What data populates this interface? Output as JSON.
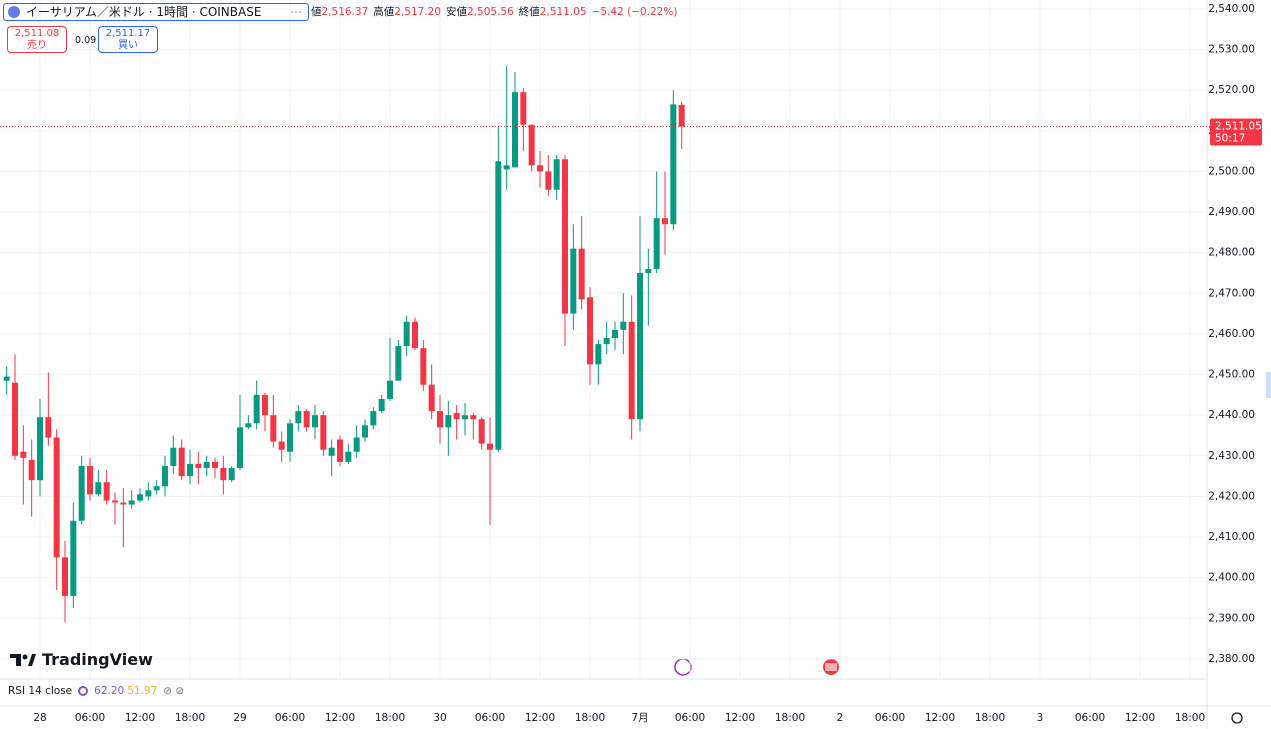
{
  "header": {
    "symbol": "イーサリアム／米ドル · 1時間 · COINBASE",
    "ohlc": [
      {
        "label": "値",
        "value": "2,516.37"
      },
      {
        "label": "高値",
        "value": "2,517.20"
      },
      {
        "label": "安値",
        "value": "2,505.56"
      },
      {
        "label": "終値",
        "value": "2,511.05"
      }
    ],
    "change": "−5.42 (−0.22%)"
  },
  "order": {
    "sell_price": "2,511.08",
    "sell": "売り",
    "spread": "0.09",
    "buy_price": "2,511.17",
    "buy": "買い"
  },
  "indicator": {
    "name": "RSI 14 close",
    "values": [
      "62.20",
      "51.97"
    ]
  },
  "brand": "TradingView",
  "chart_data": {
    "type": "candlestick",
    "up_color": "#089981",
    "down_color": "#f23645",
    "grid": true,
    "ylim": [
      2375.3,
      2542.2
    ],
    "yticks": [
      {
        "value": 2380,
        "label": "2,380.00"
      },
      {
        "value": 2390,
        "label": "2,390.00"
      },
      {
        "value": 2400,
        "label": "2,400.00"
      },
      {
        "value": 2410,
        "label": "2,410.00"
      },
      {
        "value": 2420,
        "label": "2,420.00"
      },
      {
        "value": 2430,
        "label": "2,430.00"
      },
      {
        "value": 2440,
        "label": "2,440.00"
      },
      {
        "value": 2450,
        "label": "2,450.00"
      },
      {
        "value": 2460,
        "label": "2,460.00"
      },
      {
        "value": 2470,
        "label": "2,470.00"
      },
      {
        "value": 2480,
        "label": "2,480.00"
      },
      {
        "value": 2490,
        "label": "2,490.00"
      },
      {
        "value": 2500,
        "label": "2,500.00"
      },
      {
        "value": 2510,
        "label": "2,510.00"
      },
      {
        "value": 2520,
        "label": "2,520.00"
      },
      {
        "value": 2530,
        "label": "2,530.00"
      },
      {
        "value": 2540,
        "label": "2,540.00"
      }
    ],
    "last_price": {
      "value": 2511.05,
      "label": "2,511.05"
    },
    "countdown": "50:17",
    "categories": [
      null,
      null,
      null,
      null,
      "28",
      null,
      null,
      null,
      null,
      null,
      "06:00",
      null,
      null,
      null,
      null,
      null,
      "12:00",
      null,
      null,
      null,
      null,
      null,
      "18:00",
      null,
      null,
      null,
      null,
      null,
      "29",
      null,
      null,
      null,
      null,
      null,
      "06:00",
      null,
      null,
      null,
      null,
      null,
      "12:00",
      null,
      null,
      null,
      null,
      null,
      "18:00",
      null,
      null,
      null,
      null,
      null,
      "30",
      null,
      null,
      null,
      null,
      null,
      "06:00",
      null,
      null,
      null,
      null,
      null,
      "12:00",
      null,
      null,
      null,
      null,
      null,
      "18:00",
      null,
      null,
      null,
      null,
      null,
      "7月",
      null,
      null,
      null,
      null,
      null,
      "06:00",
      null,
      null,
      null,
      null,
      null,
      "12:00",
      null,
      null,
      null,
      null,
      null,
      "18:00",
      null,
      null,
      null,
      null,
      null,
      "2",
      null,
      null,
      null,
      null,
      null,
      "06:00",
      null,
      null,
      null,
      null,
      null,
      "12:00",
      null,
      null,
      null,
      null,
      null,
      "18:00",
      null,
      null,
      null,
      null,
      null,
      "3",
      null,
      null,
      null,
      null,
      null,
      "06:00",
      null,
      null,
      null,
      null,
      null,
      "12:00",
      null,
      null,
      null,
      null,
      null,
      "18:00"
    ],
    "open": [
      2448.5,
      2448,
      2431,
      2429,
      2424,
      2439.5,
      2434.5,
      2405,
      2395.5,
      2414,
      2427.5,
      2420.5,
      2423.5,
      2419,
      2418.5,
      2418,
      2419,
      2420,
      2421.5,
      2422.5,
      2427.5,
      2432,
      2425,
      2428,
      2427,
      2428.5,
      2427,
      2424,
      2427,
      2437,
      2438,
      2445,
      2440,
      2433.5,
      2431,
      2438,
      2441,
      2437,
      2440,
      2430,
      2434,
      2428.5,
      2431,
      2434.5,
      2437.5,
      2441,
      2444,
      2448.5,
      2457,
      2463,
      2456.5,
      2447.5,
      2441,
      2437,
      2440.5,
      2439,
      2440,
      2439,
      2433,
      2431.5,
      2500.5,
      2501,
      2519.5,
      2511.5,
      2501.5,
      2500,
      2495.5,
      2503,
      2465,
      2481,
      2469,
      2452.5,
      2457.5,
      2459,
      2461,
      2463,
      2439,
      2475,
      2476,
      2488.5,
      2487,
      2516.37,
      null,
      null,
      null,
      null,
      null,
      null,
      null,
      null,
      null,
      null,
      null,
      null,
      null,
      null,
      null,
      null,
      null,
      null,
      null,
      null,
      null,
      null,
      null,
      null,
      null,
      null,
      null,
      null,
      null,
      null,
      null,
      null,
      null,
      null,
      null,
      null,
      null,
      null,
      null,
      null,
      null,
      null,
      null,
      null,
      null,
      null,
      null,
      null,
      null,
      null,
      null,
      null,
      null,
      null,
      null,
      null,
      null,
      null,
      null,
      null,
      null
    ],
    "high": [
      2452,
      2455,
      2437.5,
      2434,
      2444,
      2450.5,
      2436.5,
      2409,
      2418.5,
      2430,
      2429.5,
      2426.5,
      2426.5,
      2421,
      2422,
      2421.5,
      2422,
      2423.5,
      2424,
      2430,
      2435,
      2434,
      2431.5,
      2431,
      2430,
      2429.5,
      2430,
      2427.5,
      2445,
      2440,
      2448.5,
      2445.5,
      2445,
      2436,
      2439,
      2442.5,
      2441.5,
      2442.5,
      2441,
      2434,
      2435,
      2433,
      2437.5,
      2439,
      2442,
      2445,
      2459,
      2458.5,
      2464.5,
      2464,
      2458.5,
      2452.5,
      2445,
      2443.5,
      2442.5,
      2443,
      2440.5,
      2439.5,
      2439.5,
      2511,
      2526,
      2524.5,
      2520.5,
      2511.5,
      2505,
      2504,
      2504,
      2504,
      2487,
      2489,
      2471.5,
      2458.5,
      2463,
      2463,
      2470,
      2469.5,
      2489,
      2481,
      2500,
      2500,
      2520,
      2517.2,
      null,
      null,
      null,
      null,
      null,
      null,
      null,
      null,
      null,
      null,
      null,
      null,
      null,
      null,
      null,
      null,
      null,
      null,
      null,
      null,
      null,
      null,
      null,
      null,
      null,
      null,
      null,
      null,
      null,
      null,
      null,
      null,
      null,
      null,
      null,
      null,
      null,
      null,
      null,
      null,
      null,
      null,
      null,
      null,
      null,
      null,
      null,
      null,
      null,
      null,
      null,
      null,
      null,
      null,
      null,
      null,
      null,
      null,
      null,
      null,
      null
    ],
    "low": [
      2445,
      2429,
      2418,
      2415,
      2420,
      2432.5,
      2397,
      2389,
      2392.5,
      2413,
      2419,
      2420,
      2418,
      2413,
      2407.5,
      2417,
      2418.5,
      2419,
      2420.5,
      2420,
      2425.5,
      2424,
      2423,
      2423,
      2425,
      2424.5,
      2420.5,
      2423.5,
      2426.5,
      2436.5,
      2436.5,
      2436,
      2432,
      2428.5,
      2428.5,
      2436,
      2436,
      2434,
      2430,
      2425,
      2427.5,
      2428,
      2429.5,
      2433.5,
      2436.5,
      2440.5,
      2443.5,
      2448.5,
      2454.5,
      2456,
      2446,
      2439,
      2433,
      2430,
      2434,
      2435,
      2434,
      2431.5,
      2413,
      2431,
      2495.5,
      2501,
      2505,
      2500,
      2496,
      2494,
      2493,
      2457,
      2461,
      2466,
      2447.5,
      2447.5,
      2455,
      2456,
      2455,
      2434,
      2436,
      2462,
      2475,
      2479.5,
      2485.5,
      2505.56,
      null,
      null,
      null,
      null,
      null,
      null,
      null,
      null,
      null,
      null,
      null,
      null,
      null,
      null,
      null,
      null,
      null,
      null,
      null,
      null,
      null,
      null,
      null,
      null,
      null,
      null,
      null,
      null,
      null,
      null,
      null,
      null,
      null,
      null,
      null,
      null,
      null,
      null,
      null,
      null,
      null,
      null,
      null,
      null,
      null,
      null,
      null,
      null,
      null,
      null,
      null,
      null,
      null,
      null,
      null,
      null,
      null,
      null,
      null,
      null,
      null
    ],
    "close": [
      2449.5,
      2430,
      2429.5,
      2424,
      2439.5,
      2434.5,
      2405,
      2395.5,
      2414,
      2427.5,
      2420.5,
      2423.5,
      2419,
      2418.5,
      2418,
      2419,
      2420.5,
      2421.5,
      2422.5,
      2427.5,
      2432,
      2425,
      2428,
      2427,
      2428.5,
      2427,
      2424,
      2427,
      2437,
      2438,
      2445,
      2440,
      2433.5,
      2431.5,
      2438,
      2441,
      2437,
      2440,
      2431.5,
      2432,
      2428.5,
      2431,
      2434.5,
      2437.5,
      2441,
      2444,
      2448.5,
      2457,
      2463,
      2456.5,
      2447.5,
      2441,
      2437,
      2440,
      2439,
      2440,
      2439,
      2433,
      2431.5,
      2502.5,
      2501.5,
      2519.5,
      2511.5,
      2501.5,
      2500,
      2495.5,
      2503,
      2465,
      2481,
      2468.5,
      2452.5,
      2457.5,
      2459,
      2461,
      2463,
      2439,
      2475,
      2476,
      2488.5,
      2487,
      2516.5,
      2511.05,
      null,
      null,
      null,
      null,
      null,
      null,
      null,
      null,
      null,
      null,
      null,
      null,
      null,
      null,
      null,
      null,
      null,
      null,
      null,
      null,
      null,
      null,
      null,
      null,
      null,
      null,
      null,
      null,
      null,
      null,
      null,
      null,
      null,
      null,
      null,
      null,
      null,
      null,
      null,
      null,
      null,
      null,
      null,
      null,
      null,
      null,
      null,
      null,
      null,
      null,
      null,
      null,
      null,
      null,
      null,
      null,
      null,
      null,
      null,
      null,
      null
    ]
  }
}
